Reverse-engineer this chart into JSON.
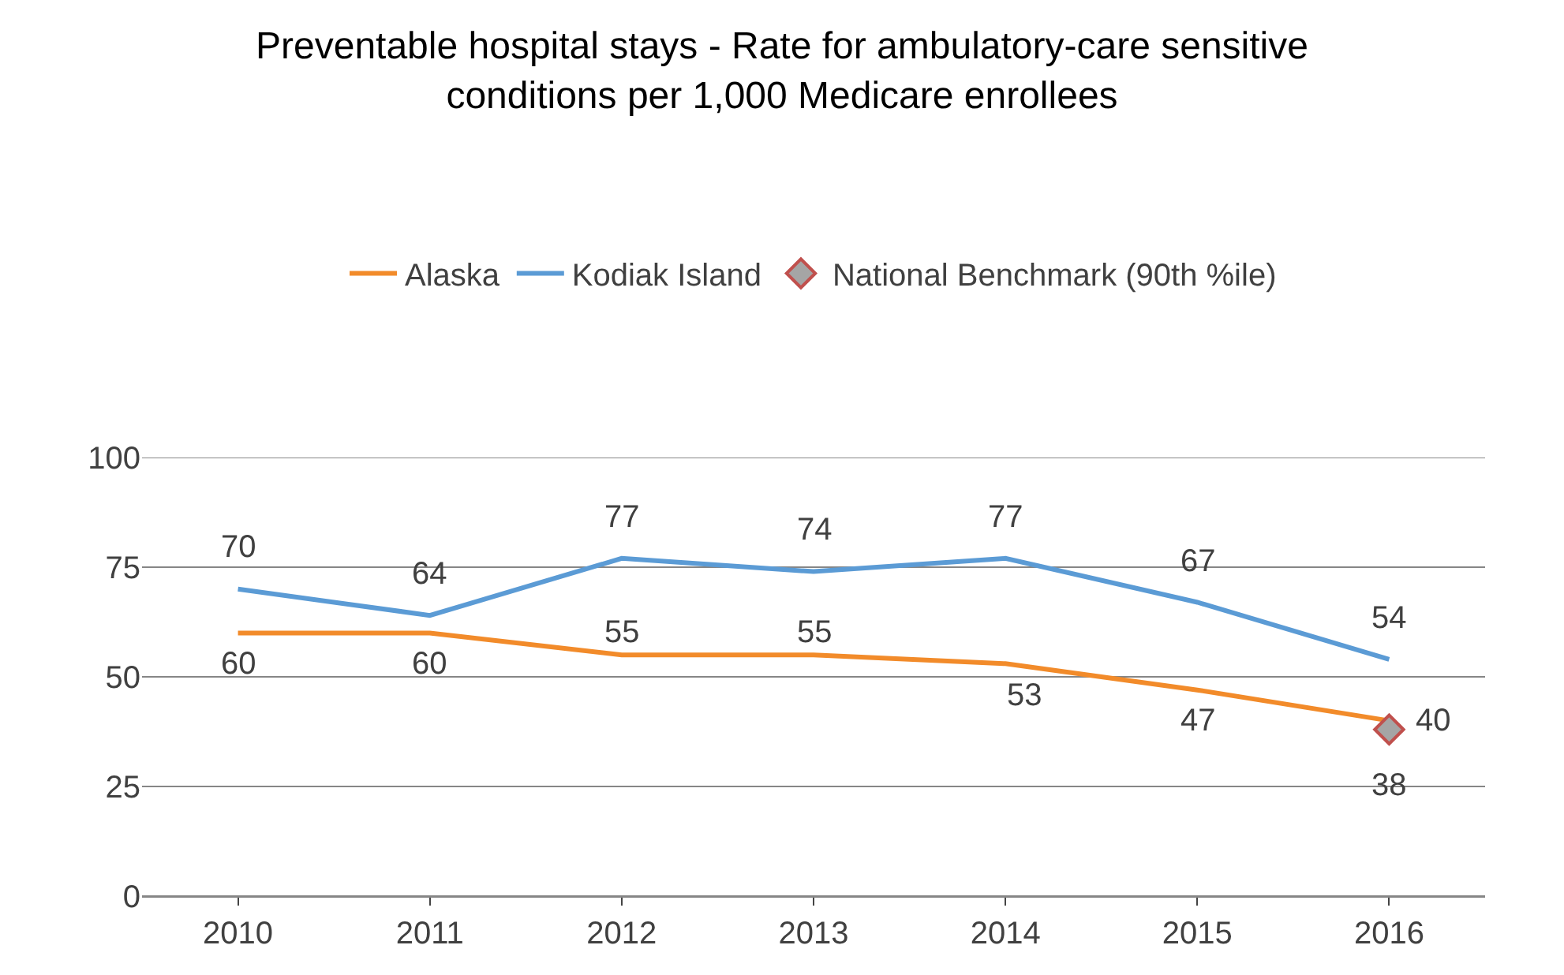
{
  "chart_data": {
    "type": "line",
    "title": "Preventable hospital stays - Rate for ambulatory-care sensitive conditions per 1,000 Medicare enrollees",
    "categories": [
      "2010",
      "2011",
      "2012",
      "2013",
      "2014",
      "2015",
      "2016"
    ],
    "series": [
      {
        "name": "Alaska",
        "color": "#f28b2a",
        "values": [
          60,
          60,
          55,
          55,
          53,
          47,
          40
        ]
      },
      {
        "name": "Kodiak Island",
        "color": "#5b9bd5",
        "values": [
          70,
          64,
          77,
          74,
          77,
          67,
          54
        ]
      },
      {
        "name": "National Benchmark (90th %ile)",
        "type": "scatter",
        "marker": "diamond",
        "color": "#a5a5a5",
        "values": [
          null,
          null,
          null,
          null,
          null,
          null,
          38
        ]
      }
    ],
    "ylim": [
      0,
      100
    ],
    "yticks": [
      0,
      25,
      50,
      75,
      100
    ],
    "grid": "y",
    "legend": "top",
    "marker": "none",
    "line_style": "solid",
    "data_labels": true
  }
}
